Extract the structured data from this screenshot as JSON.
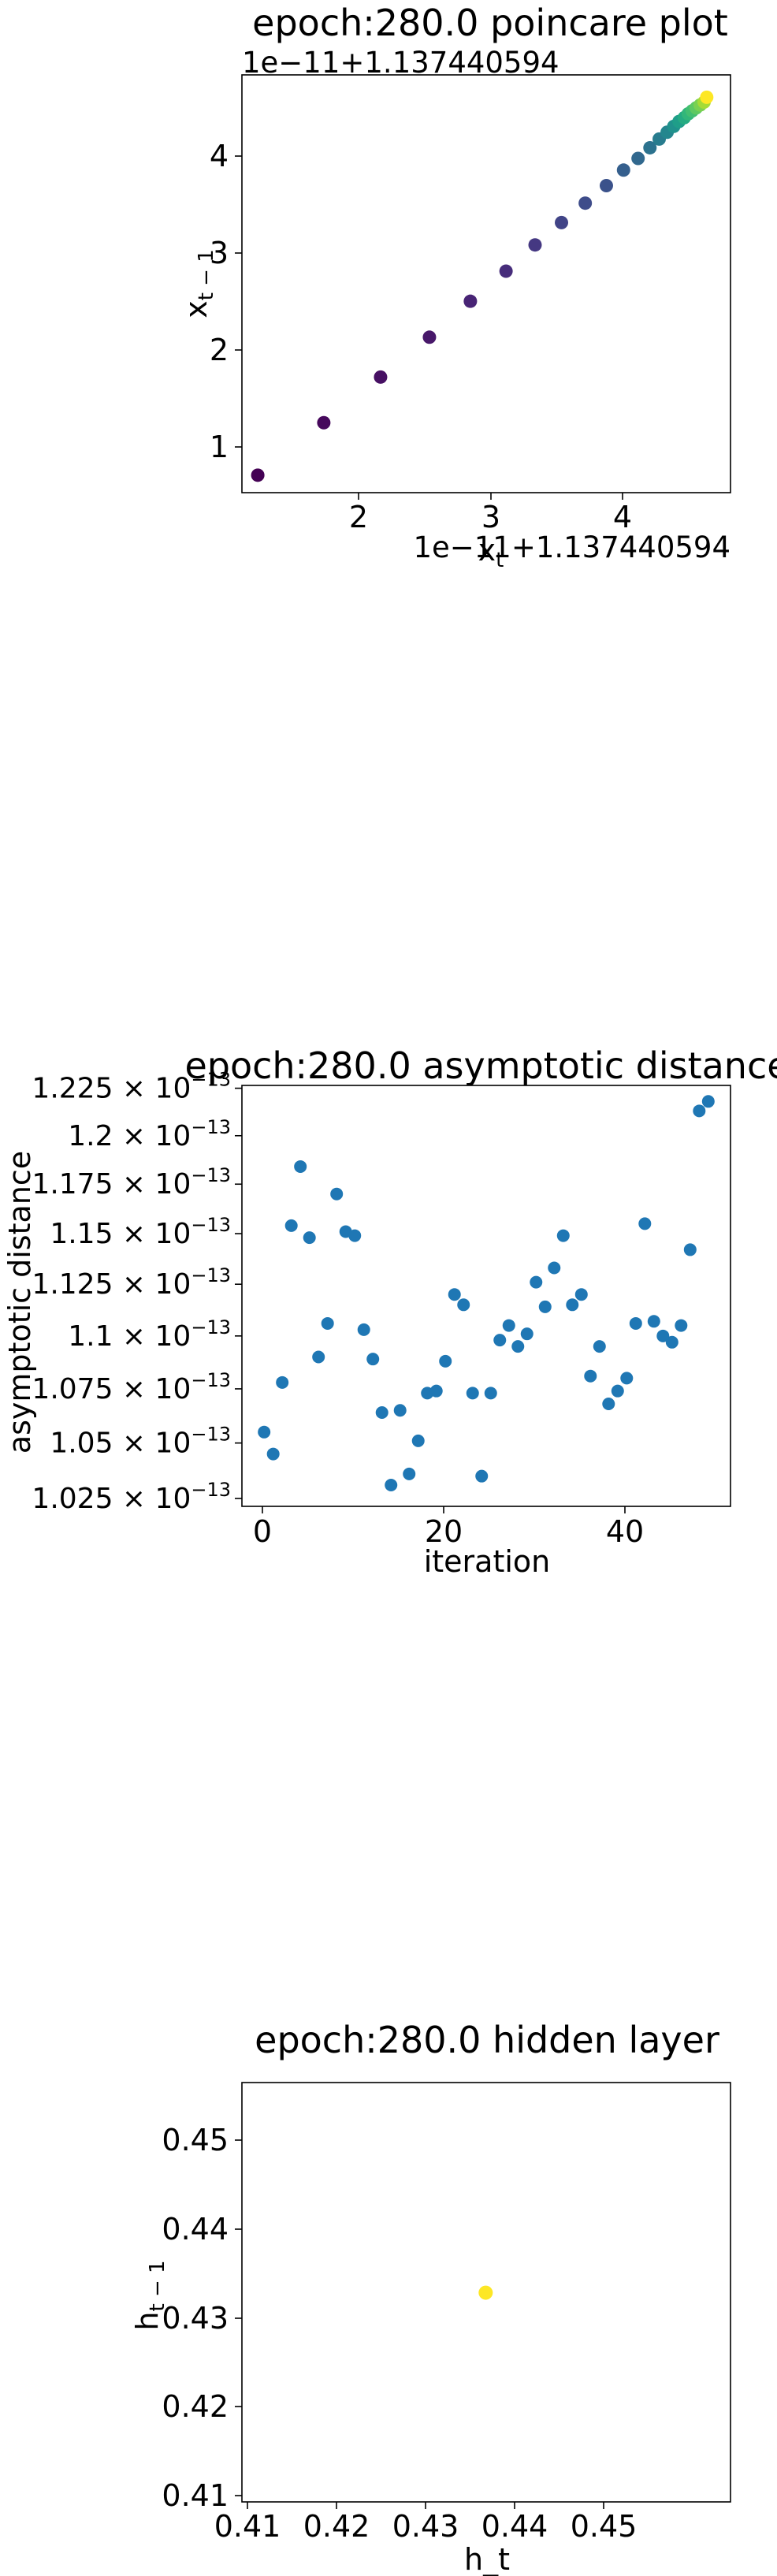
{
  "charts": [
    {
      "title": "epoch:280.0 poincare plot",
      "offset_text_y": "1e−11+1.137440594",
      "offset_text_x": "1e−11+1.137440594",
      "xlabel": "x_t",
      "ylabel": "x_{t−1}",
      "xticks": [
        "2",
        "3",
        "4"
      ],
      "yticks": [
        "1",
        "2",
        "3",
        "4"
      ]
    },
    {
      "title": "epoch:280.0 asymptotic distance",
      "xlabel": "iteration",
      "ylabel": "asymptotic distance",
      "xticks": [
        "0",
        "20",
        "40"
      ],
      "ytick_mantissas": [
        "1.025",
        "1.05",
        "1.075",
        "1.1",
        "1.125",
        "1.15",
        "1.175",
        "1.2",
        "1.225"
      ],
      "ytick_base": "× 10",
      "ytick_exp": "−13"
    },
    {
      "title": "epoch:280.0 hidden layer",
      "xlabel": "h_t",
      "ylabel": "h_{t−1}",
      "xticks": [
        "0.41",
        "0.42",
        "0.43",
        "0.44",
        "0.45"
      ],
      "yticks": [
        "0.41",
        "0.42",
        "0.43",
        "0.44",
        "0.45"
      ]
    }
  ],
  "chart_data": [
    {
      "type": "scatter",
      "title": "epoch:280.0 poincare plot",
      "xlabel": "x_t",
      "ylabel": "x_{t−1}",
      "axis_offset": 1.137440594,
      "axis_scale": 1e-11,
      "xlim": [
        1.1,
        4.8
      ],
      "ylim": [
        0.55,
        4.85
      ],
      "colormap": "viridis",
      "x": [
        1.22,
        1.72,
        2.15,
        2.52,
        2.83,
        3.1,
        3.32,
        3.52,
        3.7,
        3.86,
        3.99,
        4.1,
        4.19,
        4.26,
        4.32,
        4.37,
        4.41,
        4.45,
        4.48,
        4.51,
        4.54,
        4.57,
        4.6,
        4.62
      ],
      "y": [
        0.73,
        1.27,
        1.74,
        2.15,
        2.52,
        2.83,
        3.1,
        3.33,
        3.53,
        3.71,
        3.87,
        3.99,
        4.1,
        4.19,
        4.26,
        4.32,
        4.37,
        4.41,
        4.45,
        4.48,
        4.51,
        4.54,
        4.57,
        4.62
      ],
      "colors": [
        "#440154",
        "#46085c",
        "#471063",
        "#48186a",
        "#482475",
        "#472d7b",
        "#453882",
        "#414487",
        "#3e4c8a",
        "#3b528b",
        "#355f8d",
        "#31688e",
        "#2c728e",
        "#287c8e",
        "#24868e",
        "#20928c",
        "#1f9e89",
        "#25ab82",
        "#32b67a",
        "#42be71",
        "#5ec962",
        "#7ad151",
        "#a5db36",
        "#fde725"
      ]
    },
    {
      "type": "scatter",
      "title": "epoch:280.0 asymptotic distance",
      "xlabel": "iteration",
      "ylabel": "asymptotic distance",
      "xlim": [
        -2.45,
        51.45
      ],
      "ylim": [
        1.0215e-13,
        1.2265e-13
      ],
      "y_scale": "log",
      "color": "#1f77b4",
      "x": [
        0,
        1,
        2,
        3,
        4,
        5,
        6,
        7,
        8,
        9,
        10,
        11,
        12,
        13,
        14,
        15,
        16,
        17,
        18,
        19,
        20,
        21,
        22,
        23,
        24,
        25,
        26,
        27,
        28,
        29,
        30,
        31,
        32,
        33,
        34,
        35,
        36,
        37,
        38,
        39,
        40,
        41,
        42,
        43,
        44,
        45,
        46,
        47,
        48,
        49
      ],
      "y": [
        1.055e-13,
        1.045e-13,
        1.078e-13,
        1.154e-13,
        1.184e-13,
        1.148e-13,
        1.09e-13,
        1.106e-13,
        1.17e-13,
        1.151e-13,
        1.149e-13,
        1.103e-13,
        1.089e-13,
        1.064e-13,
        1.031e-13,
        1.065e-13,
        1.036e-13,
        1.051e-13,
        1.073e-13,
        1.074e-13,
        1.088e-13,
        1.12e-13,
        1.115e-13,
        1.073e-13,
        1.035e-13,
        1.073e-13,
        1.098e-13,
        1.105e-13,
        1.095e-13,
        1.101e-13,
        1.126e-13,
        1.114e-13,
        1.133e-13,
        1.149e-13,
        1.115e-13,
        1.12e-13,
        1.081e-13,
        1.095e-13,
        1.068e-13,
        1.074e-13,
        1.08e-13,
        1.106e-13,
        1.155e-13,
        1.107e-13,
        1.1e-13,
        1.097e-13,
        1.105e-13,
        1.142e-13,
        1.213e-13,
        1.218e-13
      ]
    },
    {
      "type": "scatter",
      "title": "epoch:280.0 hidden layer",
      "xlabel": "h_t",
      "ylabel": "h_{t−1}",
      "xlim": [
        0.4095,
        0.4562
      ],
      "ylim": [
        0.4095,
        0.4562
      ],
      "color": "#fde725",
      "x": [
        0.4328
      ],
      "y": [
        0.4328
      ]
    }
  ]
}
